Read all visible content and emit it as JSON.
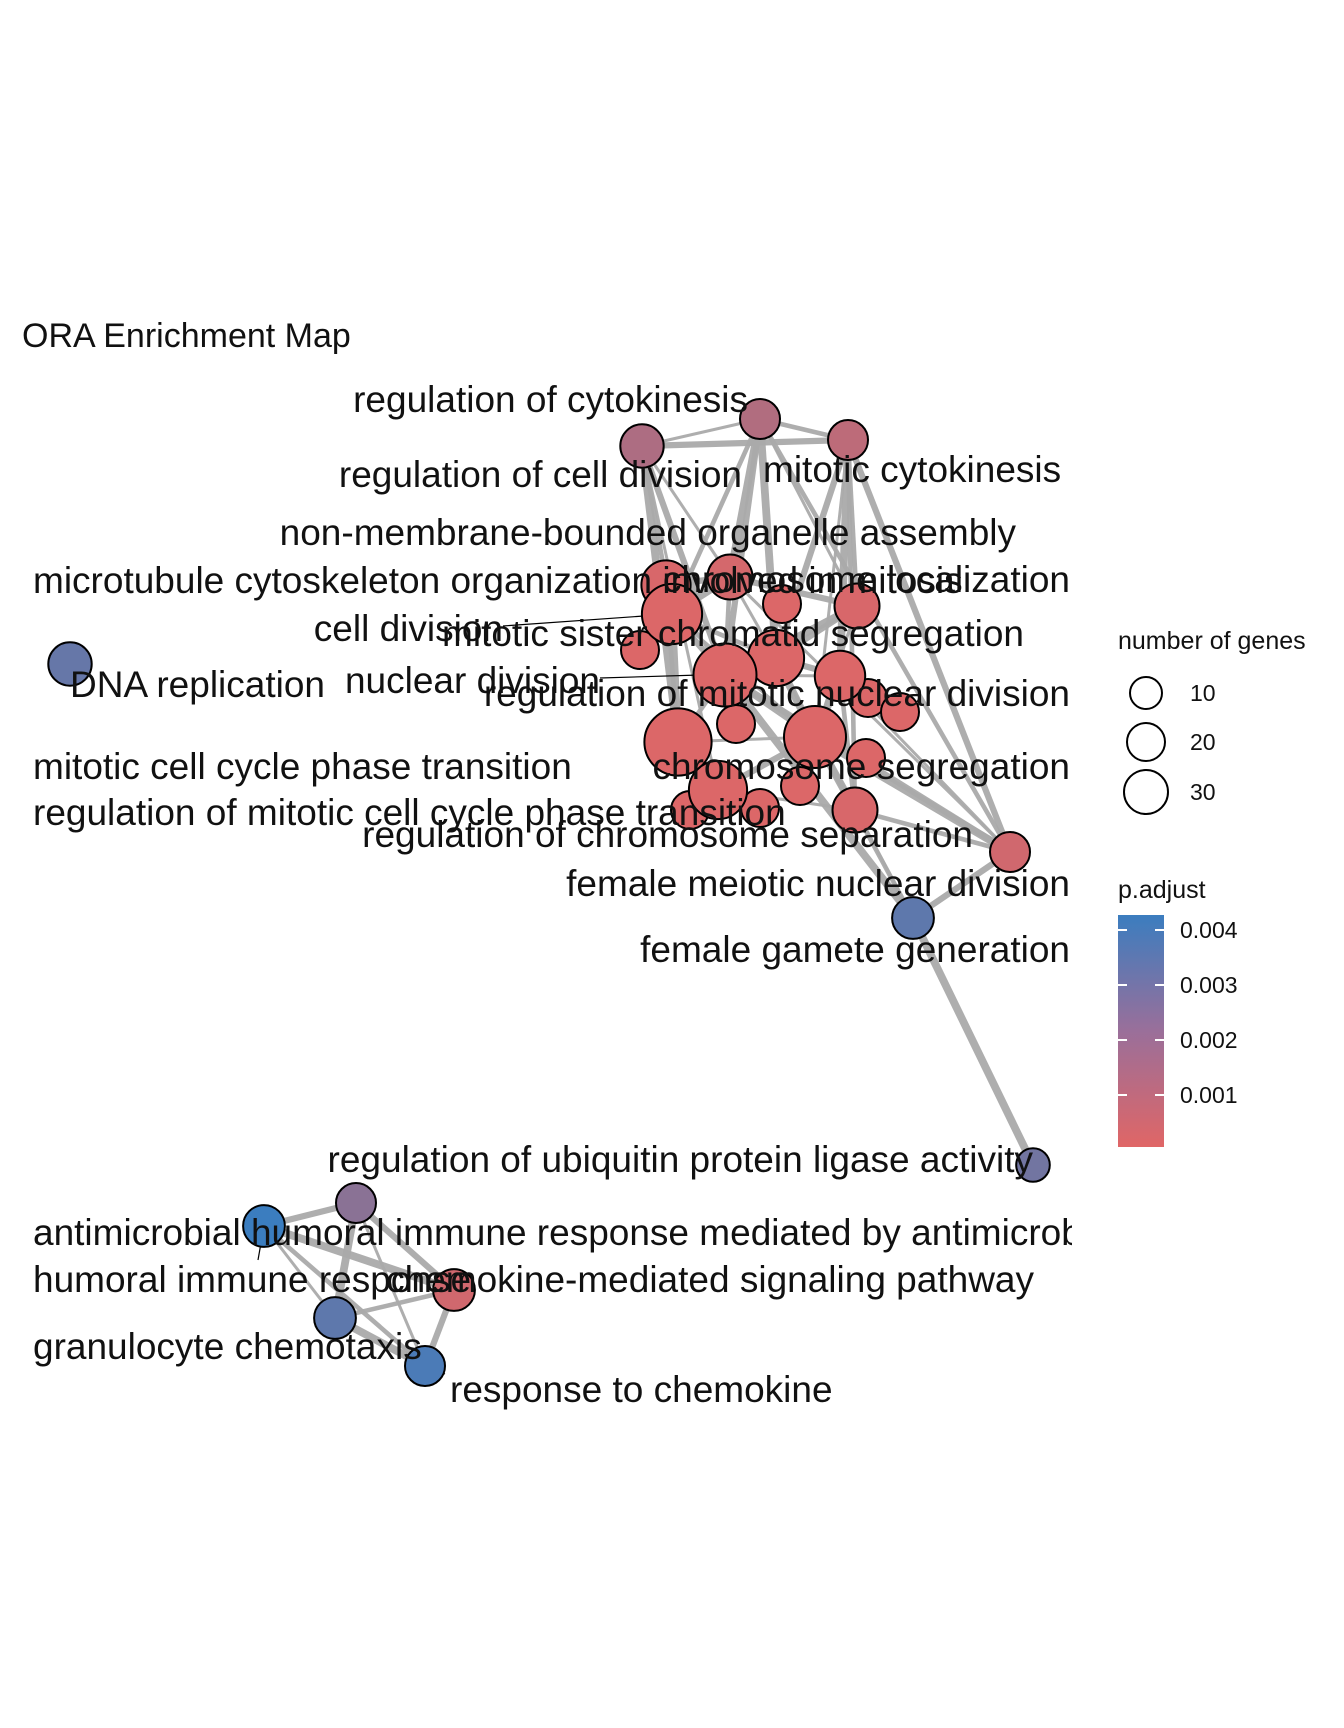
{
  "title": "ORA Enrichment Map",
  "legend": {
    "size_title": "number of genes",
    "size_values": [
      "10",
      "20",
      "30"
    ],
    "color_title": "p.adjust",
    "color_ticks": [
      "0.004",
      "0.003",
      "0.002",
      "0.001"
    ],
    "color_low": "#e06666",
    "color_high": "#3b7dbf"
  },
  "nodes": [
    {
      "label": "regulation of cytokinesis",
      "genes": 6,
      "padj": 0.0012
    },
    {
      "label": "regulation of cell division",
      "genes": 8,
      "padj": 0.0013
    },
    {
      "label": "mitotic cytokinesis",
      "genes": 6,
      "padj": 0.0009
    },
    {
      "label": "non-membrane-bounded organelle assembly",
      "genes": 9,
      "padj": 0.0003
    },
    {
      "label": "microtubule cytoskeleton organization involved in mitosis",
      "genes": 12,
      "padj": 0.0002
    },
    {
      "label": "chromosome localization",
      "genes": 9,
      "padj": 0.0002
    },
    {
      "label": "cell division",
      "genes": 22,
      "padj": 0.0001
    },
    {
      "label": "mitotic sister chromatid segregation",
      "genes": 18,
      "padj": 0.0001
    },
    {
      "label": "DNA replication",
      "genes": 8,
      "padj": 0.0031
    },
    {
      "label": "nuclear division",
      "genes": 25,
      "padj": 0.0001
    },
    {
      "label": "regulation of mitotic nuclear division",
      "genes": 13,
      "padj": 0.0001
    },
    {
      "label": "mitotic cell cycle phase transition",
      "genes": 30,
      "padj": 0.0001
    },
    {
      "label": "chromosome segregation",
      "genes": 24,
      "padj": 0.0001
    },
    {
      "label": "regulation of mitotic cell cycle phase transition",
      "genes": 20,
      "padj": 0.0001
    },
    {
      "label": "regulation of chromosome separation",
      "genes": 9,
      "padj": 0.0002
    },
    {
      "label": "female meiotic nuclear division",
      "genes": 6,
      "padj": 0.0004
    },
    {
      "label": "female gamete generation",
      "genes": 7,
      "padj": 0.0033
    },
    {
      "label": "regulation of ubiquitin protein ligase activity",
      "genes": 3,
      "padj": 0.0028
    },
    {
      "label": "antimicrobial humoral immune response mediated by antimicrobial peptide",
      "genes": 7,
      "padj": 0.0042
    },
    {
      "label": "humoral immune response",
      "genes": 6,
      "padj": 0.0022
    },
    {
      "label": "chemokine-mediated signaling pathway",
      "genes": 7,
      "padj": 0.0004
    },
    {
      "label": "granulocyte chemotaxis",
      "genes": 7,
      "padj": 0.0033
    },
    {
      "label": "response to chemokine",
      "genes": 6,
      "padj": 0.0038
    }
  ]
}
